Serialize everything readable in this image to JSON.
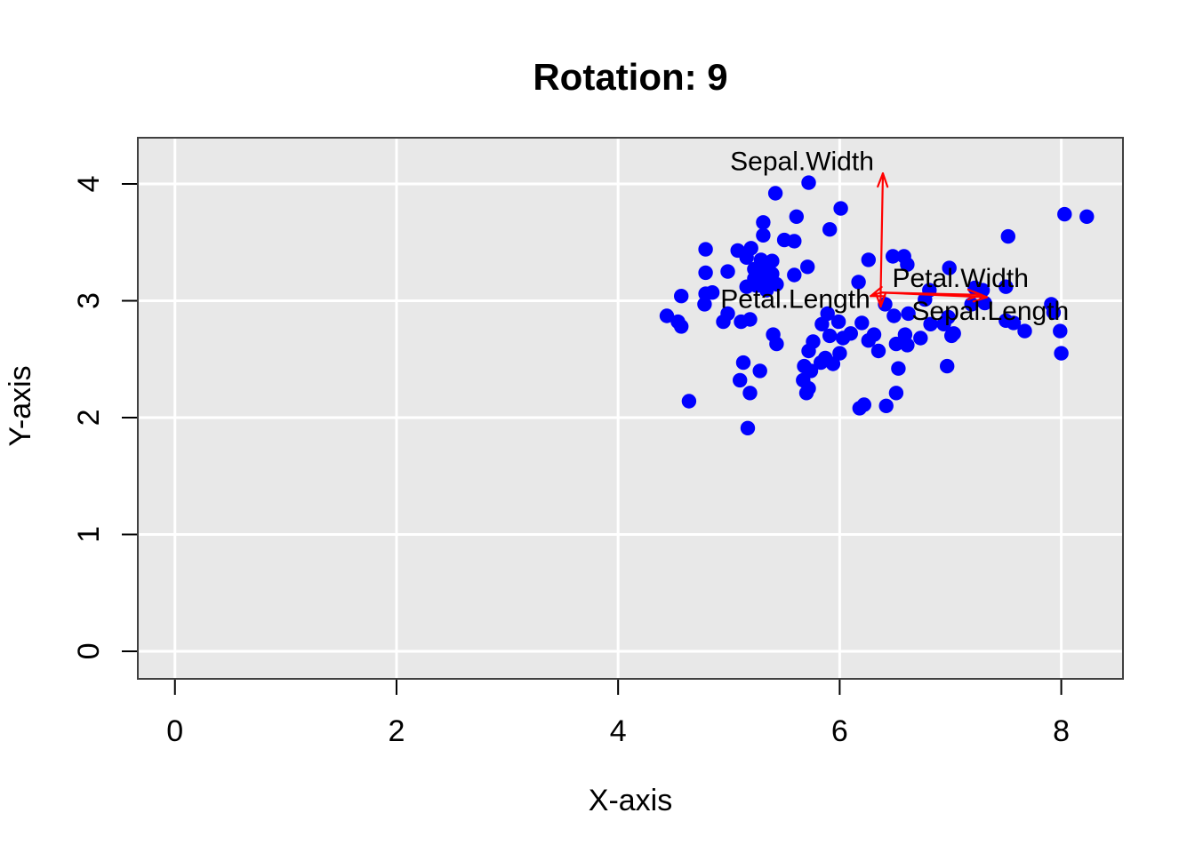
{
  "title": "Rotation: 9",
  "axes": {
    "x_label": "X-axis",
    "y_label": "Y-axis",
    "x_ticks": [
      0,
      2,
      4,
      6,
      8
    ],
    "y_ticks": [
      0,
      1,
      2,
      3,
      4
    ]
  },
  "colors": {
    "panel_background": "#E8E8E8",
    "grid": "#FFFFFF",
    "points": "#0000FF",
    "arrows": "#FF0000",
    "border": "#404040",
    "text": "#000000"
  },
  "chart_data": {
    "type": "scatter",
    "title": "Rotation: 9",
    "xlabel": "X-axis",
    "ylabel": "Y-axis",
    "xlim": [
      -0.335,
      8.557
    ],
    "ylim": [
      -0.236,
      4.395
    ],
    "x_ticks": [
      0,
      2,
      4,
      6,
      8
    ],
    "y_ticks": [
      0,
      1,
      2,
      3,
      4
    ],
    "grid": true,
    "legend": "none",
    "point_color": "#0000FF",
    "points": [
      [
        5.72,
        4.01
      ],
      [
        5.42,
        3.92
      ],
      [
        6.01,
        3.79
      ],
      [
        5.61,
        3.72
      ],
      [
        5.31,
        3.67
      ],
      [
        5.31,
        3.56
      ],
      [
        5.91,
        3.61
      ],
      [
        5.5,
        3.52
      ],
      [
        5.59,
        3.51
      ],
      [
        4.79,
        3.44
      ],
      [
        5.08,
        3.43
      ],
      [
        5.2,
        3.45
      ],
      [
        5.16,
        3.37
      ],
      [
        5.29,
        3.35
      ],
      [
        5.39,
        3.34
      ],
      [
        5.23,
        3.27
      ],
      [
        5.32,
        3.26
      ],
      [
        4.79,
        3.24
      ],
      [
        4.99,
        3.25
      ],
      [
        5.59,
        3.22
      ],
      [
        5.71,
        3.29
      ],
      [
        5.39,
        3.23
      ],
      [
        4.57,
        3.04
      ],
      [
        4.79,
        3.06
      ],
      [
        4.85,
        3.07
      ],
      [
        5.16,
        3.12
      ],
      [
        5.25,
        3.13
      ],
      [
        5.34,
        3.09
      ],
      [
        5.43,
        3.14
      ],
      [
        5.23,
        3.19
      ],
      [
        5.32,
        3.18
      ],
      [
        4.78,
        2.97
      ],
      [
        4.99,
        2.89
      ],
      [
        4.44,
        2.87
      ],
      [
        4.54,
        2.82
      ],
      [
        4.57,
        2.78
      ],
      [
        4.95,
        2.82
      ],
      [
        5.11,
        2.82
      ],
      [
        5.19,
        2.84
      ],
      [
        5.84,
        2.8
      ],
      [
        5.4,
        2.71
      ],
      [
        5.43,
        2.63
      ],
      [
        5.13,
        2.47
      ],
      [
        5.28,
        2.4
      ],
      [
        5.1,
        2.32
      ],
      [
        5.19,
        2.21
      ],
      [
        4.64,
        2.14
      ],
      [
        5.17,
        1.91
      ],
      [
        5.76,
        2.65
      ],
      [
        5.72,
        2.57
      ],
      [
        5.68,
        2.44
      ],
      [
        5.74,
        2.4
      ],
      [
        5.83,
        2.47
      ],
      [
        5.87,
        2.51
      ],
      [
        5.67,
        2.32
      ],
      [
        5.72,
        2.25
      ],
      [
        5.7,
        2.21
      ],
      [
        6.26,
        3.35
      ],
      [
        6.48,
        3.38
      ],
      [
        6.58,
        3.38
      ],
      [
        6.61,
        3.31
      ],
      [
        6.99,
        3.28
      ],
      [
        6.17,
        3.16
      ],
      [
        7.22,
        3.11
      ],
      [
        7.29,
        3.09
      ],
      [
        7.5,
        3.12
      ],
      [
        6.41,
        2.97
      ],
      [
        6.49,
        2.87
      ],
      [
        6.62,
        2.89
      ],
      [
        6.77,
        3.01
      ],
      [
        6.81,
        3.09
      ],
      [
        6.82,
        2.8
      ],
      [
        6.94,
        2.8
      ],
      [
        6.98,
        2.86
      ],
      [
        7.19,
        2.97
      ],
      [
        6.2,
        2.81
      ],
      [
        5.99,
        2.82
      ],
      [
        5.89,
        2.89
      ],
      [
        6.1,
        2.72
      ],
      [
        6.31,
        2.71
      ],
      [
        6.59,
        2.71
      ],
      [
        7.03,
        2.72
      ],
      [
        5.91,
        2.7
      ],
      [
        6.03,
        2.68
      ],
      [
        6.26,
        2.66
      ],
      [
        6.35,
        2.57
      ],
      [
        6.51,
        2.63
      ],
      [
        6.61,
        2.62
      ],
      [
        6.73,
        2.68
      ],
      [
        7.01,
        2.7
      ],
      [
        6.0,
        2.55
      ],
      [
        5.94,
        2.46
      ],
      [
        6.53,
        2.42
      ],
      [
        6.97,
        2.44
      ],
      [
        6.51,
        2.21
      ],
      [
        6.22,
        2.11
      ],
      [
        6.18,
        2.08
      ],
      [
        6.42,
        2.1
      ],
      [
        8.03,
        3.74
      ],
      [
        8.23,
        3.72
      ],
      [
        7.52,
        3.55
      ],
      [
        7.91,
        2.97
      ],
      [
        7.93,
        2.9
      ],
      [
        7.57,
        2.81
      ],
      [
        7.5,
        2.83
      ],
      [
        7.67,
        2.74
      ],
      [
        7.99,
        2.74
      ],
      [
        8.0,
        2.55
      ],
      [
        7.31,
        2.98
      ]
    ],
    "biplot_arrows": {
      "origin": [
        6.37,
        3.07
      ],
      "color": "#FF0000",
      "arrows": [
        {
          "label": "Sepal.Width",
          "end": [
            6.39,
            4.09
          ],
          "label_pos": [
            5.66,
            4.19
          ]
        },
        {
          "label": "Petal.Width",
          "end": [
            7.28,
            3.05
          ],
          "label_pos": [
            7.09,
            3.19
          ]
        },
        {
          "label": "Sepal.Length",
          "end": [
            7.33,
            3.03
          ],
          "label_pos": [
            7.36,
            2.91
          ]
        },
        {
          "label": "Petal.Length",
          "end": [
            6.28,
            3.04
          ],
          "label_pos": [
            5.6,
            3.01
          ]
        },
        {
          "label": "",
          "end": [
            6.37,
            2.95
          ],
          "label_pos": null
        }
      ]
    }
  }
}
